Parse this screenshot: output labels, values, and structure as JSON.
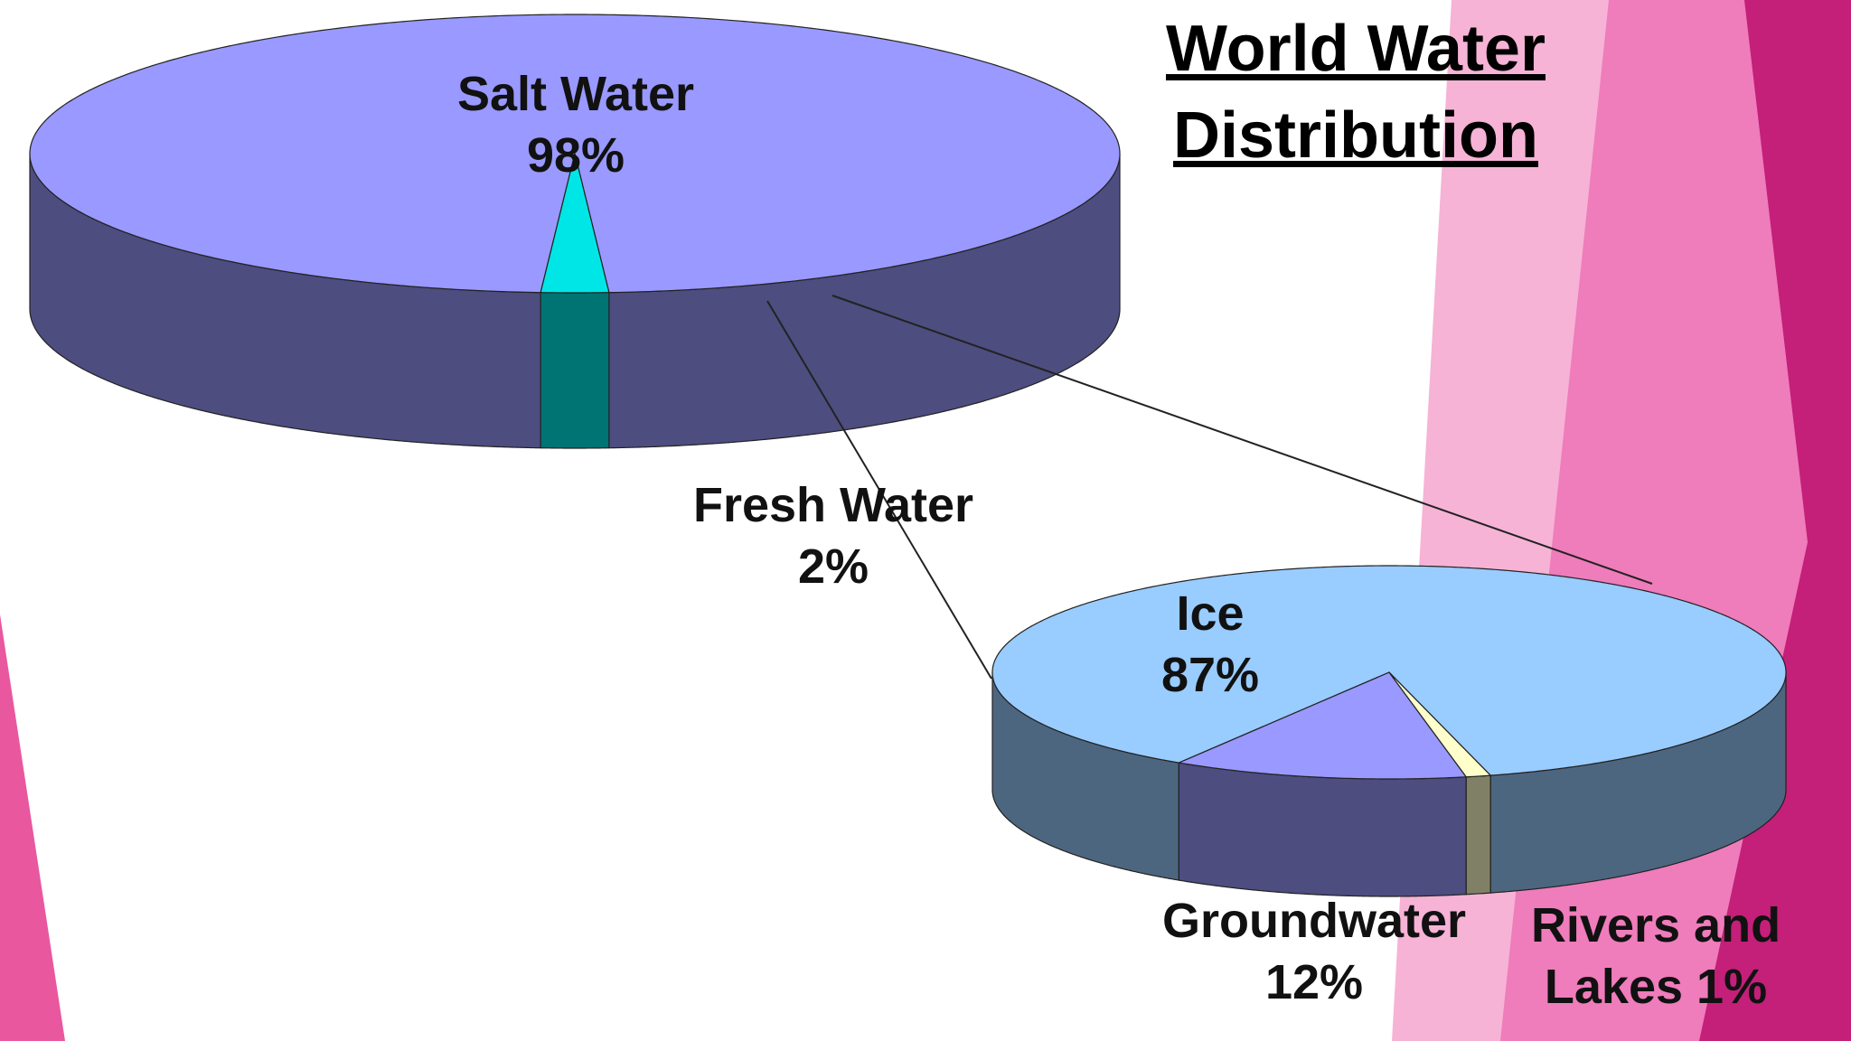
{
  "chart_data": [
    {
      "type": "pie3d",
      "title": "World Water Distribution",
      "categories": [
        "Salt Water",
        "Fresh Water"
      ],
      "values": [
        98,
        2
      ],
      "value_labels": [
        "98%",
        "2%"
      ],
      "colors": [
        "#9999ff",
        "#00e6e6"
      ]
    },
    {
      "type": "pie3d",
      "categories": [
        "Ice",
        "Groundwater",
        "Rivers and Lakes"
      ],
      "values": [
        87,
        12,
        1
      ],
      "value_labels": [
        "87%",
        "12%",
        "1%"
      ],
      "colors": [
        "#99ccff",
        "#9999ff",
        "#ffffcc"
      ]
    }
  ]
}
